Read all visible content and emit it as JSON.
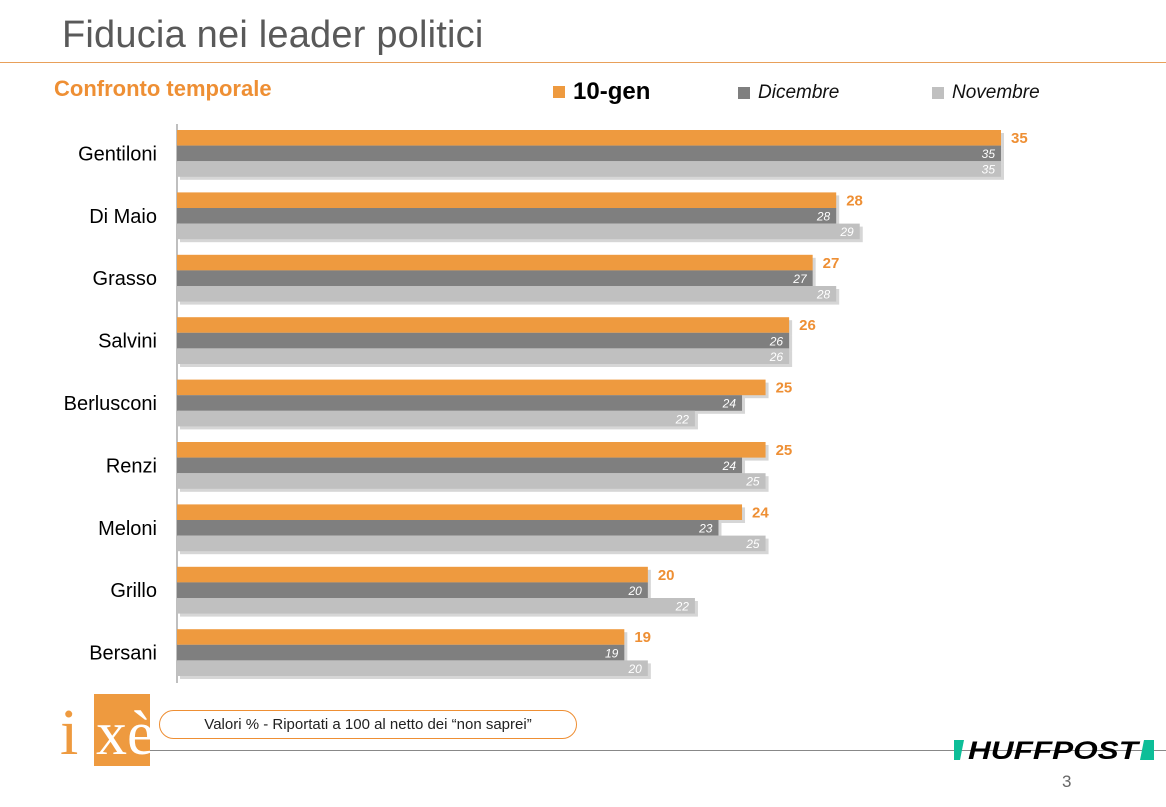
{
  "header": {
    "title": "Fiducia nei leader politici",
    "subtitle": "Confronto temporale"
  },
  "colors": {
    "accent": "#ee8f34",
    "series": [
      "#ee9a3f",
      "#7f7f7f",
      "#c0c0c0"
    ],
    "axis": "#7f7f7f"
  },
  "chart_data": {
    "type": "bar",
    "orientation": "horizontal",
    "title": "Fiducia nei leader politici",
    "categories": [
      "Gentiloni",
      "Di Maio",
      "Grasso",
      "Salvini",
      "Berlusconi",
      "Renzi",
      "Meloni",
      "Grillo",
      "Bersani"
    ],
    "series": [
      {
        "name": "10-gen",
        "values": [
          35,
          28,
          27,
          26,
          25,
          25,
          24,
          20,
          19
        ]
      },
      {
        "name": "Dicembre",
        "values": [
          35,
          28,
          27,
          26,
          24,
          24,
          23,
          20,
          19
        ]
      },
      {
        "name": "Novembre",
        "values": [
          35,
          29,
          28,
          26,
          22,
          25,
          25,
          22,
          20
        ]
      }
    ],
    "xlim": [
      0,
      35
    ],
    "grid": false,
    "legend": "top",
    "data_labels": true
  },
  "footer": {
    "note": "Valori % - Riportati a 100 al netto dei “non saprei”",
    "logo_left": "ixè",
    "logo_right": "HUFFPOST",
    "page_number": "3"
  }
}
